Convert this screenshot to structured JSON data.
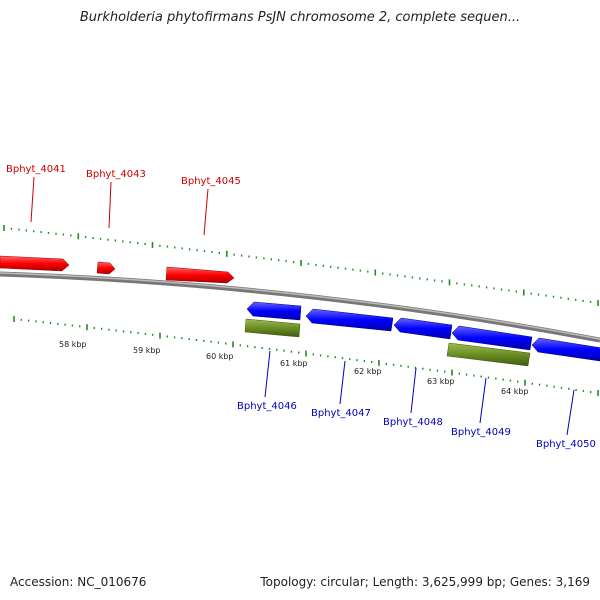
{
  "title": "Burkholderia phytofirmans PsJN chromosome 2, complete sequen...",
  "footer": {
    "accession": "Accession: NC_010676",
    "summary": "Topology: circular; Length: 3,625,999 bp; Genes: 3,169"
  },
  "colors": {
    "forward_gene": "#ff0000",
    "reverse_gene": "#0000ff",
    "feature_green": "#6b8e23",
    "forward_label": "#cc0000",
    "reverse_label": "#0000bb",
    "tick": "#228b22",
    "backbone": "#888888"
  },
  "scale_labels": [
    "58 kbp",
    "59 kbp",
    "60 kbp",
    "61 kbp",
    "62 kbp",
    "63 kbp",
    "64 kbp"
  ],
  "forward_genes": [
    "Bphyt_4041",
    "Bphyt_4043",
    "Bphyt_4045"
  ],
  "reverse_genes": [
    "Bphyt_4046",
    "Bphyt_4047",
    "Bphyt_4048",
    "Bphyt_4049",
    "Bphyt_4050"
  ]
}
